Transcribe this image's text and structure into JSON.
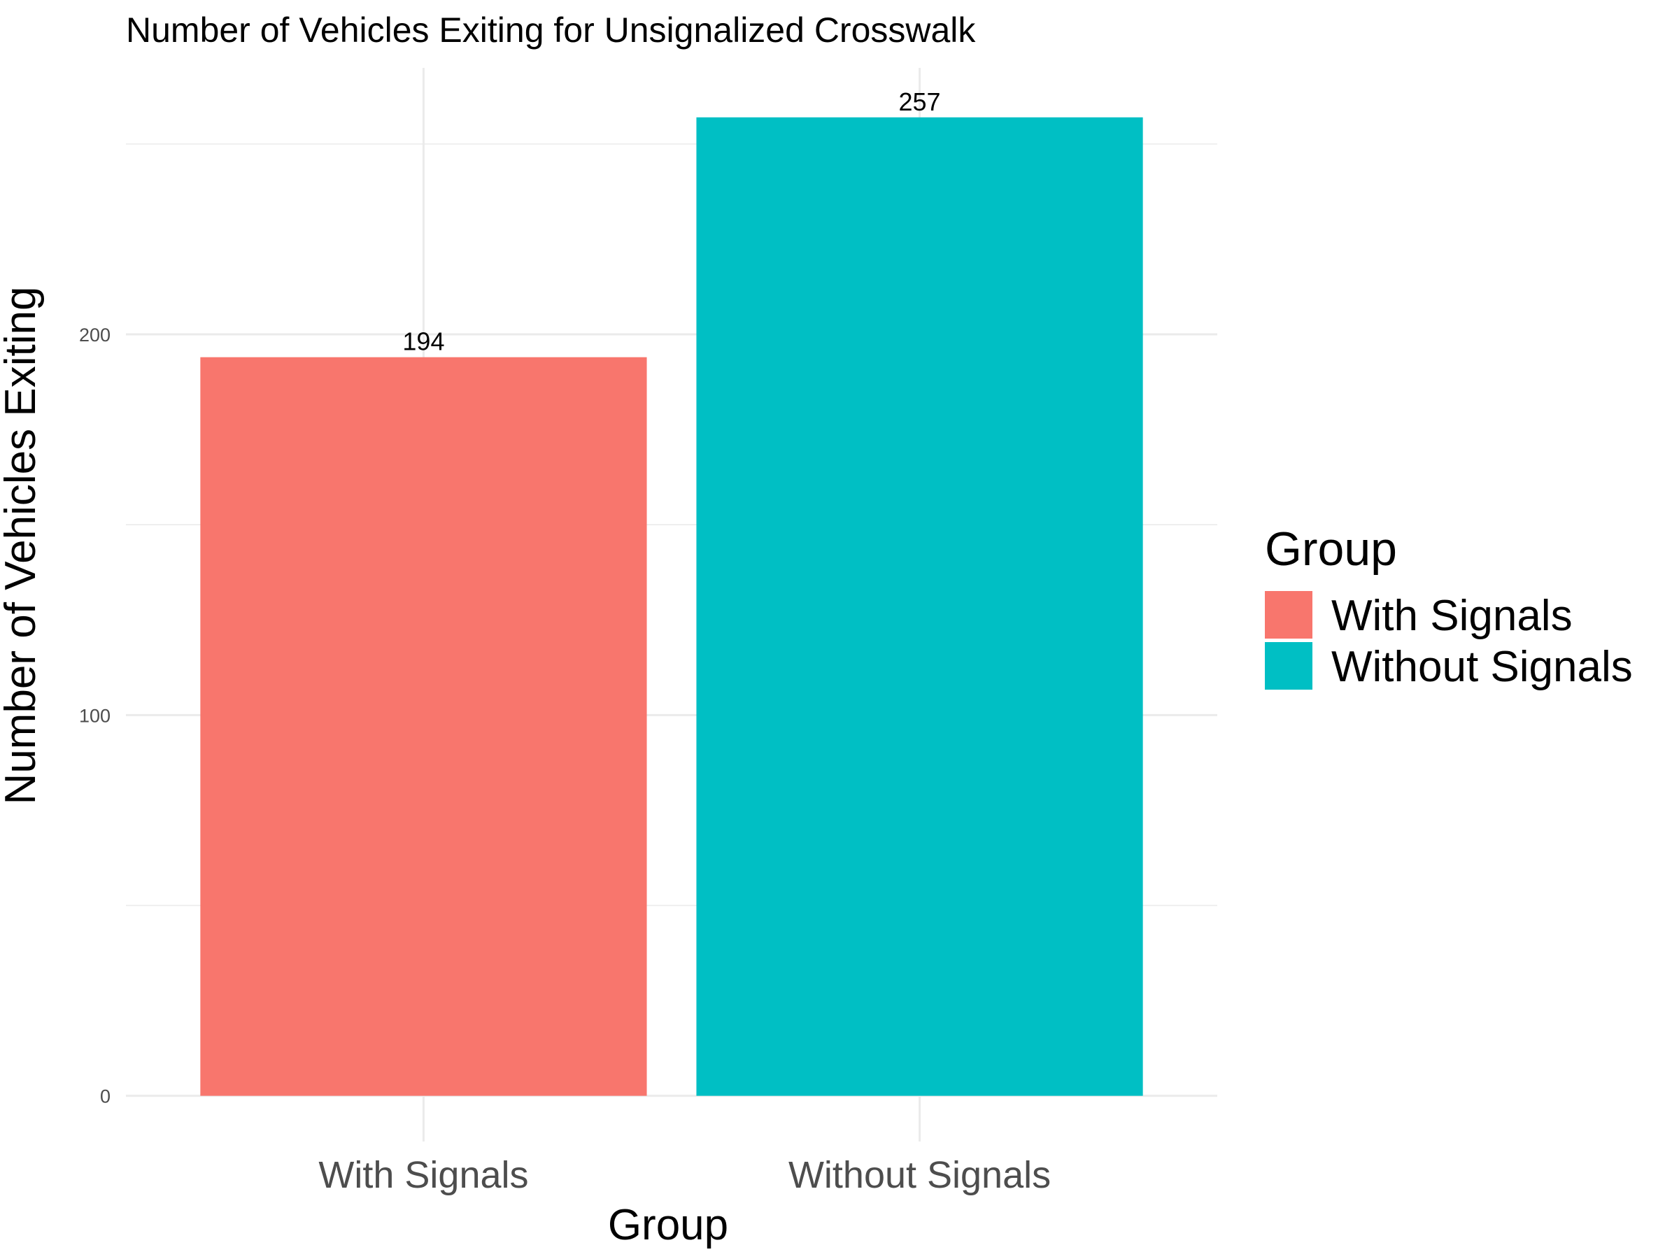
{
  "chart_data": {
    "type": "bar",
    "title": "Number of Vehicles Exiting for Unsignalized Crosswalk",
    "xlabel": "Group",
    "ylabel": "Number of Vehicles Exiting",
    "categories": [
      "With Signals",
      "Without Signals"
    ],
    "values": [
      194,
      257
    ],
    "colors": [
      "#F8766D",
      "#00BFC4"
    ],
    "ylim": [
      -12,
      270
    ],
    "yticks": [
      0,
      100,
      200
    ],
    "ytick_labels": [
      "0",
      "100",
      "200"
    ],
    "grid": true,
    "legend": {
      "title": "Group",
      "position": "right",
      "entries": [
        "With Signals",
        "Without Signals"
      ]
    }
  }
}
